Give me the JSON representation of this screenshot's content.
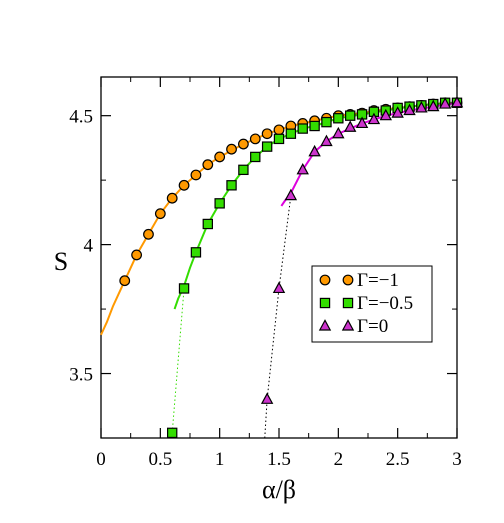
{
  "chart_data": {
    "type": "scatter",
    "title": "",
    "xlabel": "α/β",
    "ylabel": "S",
    "xlim": [
      0,
      3
    ],
    "ylim": [
      3.25,
      4.65
    ],
    "x_ticks": [
      0,
      0.5,
      1,
      1.5,
      2,
      2.5,
      3
    ],
    "x_tick_labels": [
      "0",
      "0.5",
      "1",
      "1.5",
      "2",
      "2.5",
      "3"
    ],
    "y_ticks": [
      3.5,
      4,
      4.5
    ],
    "y_tick_labels": [
      "3.5",
      "4",
      "4.5"
    ],
    "grid": false,
    "legend_position": "center-right",
    "series": [
      {
        "name": "Γ=−1",
        "marker": "circle",
        "marker_color": "#ff9900",
        "fit_color": "#ff9900",
        "connector_color": "#ff9900",
        "x": [
          0.2,
          0.3,
          0.4,
          0.5,
          0.6,
          0.7,
          0.8,
          0.9,
          1.0,
          1.1,
          1.2,
          1.3,
          1.4,
          1.5,
          1.6,
          1.7,
          1.8,
          1.9,
          2.0,
          2.1,
          2.2,
          2.3,
          2.4,
          2.5,
          2.6,
          2.7,
          2.8,
          2.9,
          3.0
        ],
        "y": [
          3.86,
          3.96,
          4.04,
          4.12,
          4.18,
          4.23,
          4.27,
          4.31,
          4.34,
          4.37,
          4.39,
          4.41,
          4.43,
          4.445,
          4.46,
          4.47,
          4.48,
          4.49,
          4.5,
          4.505,
          4.51,
          4.52,
          4.525,
          4.53,
          4.535,
          4.54,
          4.545,
          4.55,
          4.55
        ],
        "fit_x": [
          0,
          0.05,
          0.1,
          0.15,
          0.2,
          0.25,
          0.3,
          0.4,
          0.5,
          0.6,
          0.7,
          0.8,
          0.9,
          1.0,
          1.2,
          1.4,
          1.6,
          1.8,
          2.0,
          2.2,
          2.4,
          2.6,
          2.8,
          3.0
        ],
        "fit_y": [
          3.65,
          3.7,
          3.76,
          3.81,
          3.86,
          3.91,
          3.96,
          4.04,
          4.12,
          4.18,
          4.23,
          4.27,
          4.31,
          4.34,
          4.39,
          4.43,
          4.46,
          4.48,
          4.5,
          4.51,
          4.525,
          4.535,
          4.545,
          4.55
        ],
        "connector_x": [],
        "connector_y": []
      },
      {
        "name": "Γ=−0.5",
        "marker": "square",
        "marker_color": "#33dd00",
        "fit_color": "#33dd00",
        "connector_color": "#33dd00",
        "x": [
          0.6,
          0.7,
          0.8,
          0.9,
          1.0,
          1.1,
          1.2,
          1.3,
          1.4,
          1.5,
          1.6,
          1.7,
          1.8,
          1.9,
          2.0,
          2.1,
          2.2,
          2.3,
          2.4,
          2.5,
          2.6,
          2.7,
          2.8,
          2.9,
          3.0
        ],
        "y": [
          3.27,
          3.83,
          3.97,
          4.08,
          4.16,
          4.23,
          4.29,
          4.34,
          4.38,
          4.41,
          4.43,
          4.45,
          4.46,
          4.475,
          4.49,
          4.5,
          4.505,
          4.515,
          4.52,
          4.53,
          4.535,
          4.54,
          4.545,
          4.55,
          4.55
        ],
        "fit_x": [
          0.62,
          0.65,
          0.7,
          0.75,
          0.8,
          0.9,
          1.0,
          1.1,
          1.2,
          1.3,
          1.4,
          1.5,
          1.6,
          1.7,
          1.8,
          2.0,
          2.2,
          2.4,
          2.6,
          2.8,
          3.0
        ],
        "fit_y": [
          3.75,
          3.79,
          3.84,
          3.91,
          3.97,
          4.08,
          4.16,
          4.23,
          4.29,
          4.34,
          4.38,
          4.41,
          4.43,
          4.45,
          4.46,
          4.49,
          4.505,
          4.52,
          4.535,
          4.545,
          4.55
        ],
        "connector_x": [
          0.6,
          0.7
        ],
        "connector_y": [
          3.27,
          3.83
        ]
      },
      {
        "name": "Γ=0",
        "marker": "triangle",
        "marker_color": "#cc33cc",
        "fit_color": "#dd00dd",
        "connector_color": "#000000",
        "x": [
          1.4,
          1.5,
          1.6,
          1.7,
          1.8,
          1.9,
          2.0,
          2.1,
          2.2,
          2.3,
          2.4,
          2.5,
          2.6,
          2.7,
          2.8,
          2.9,
          3.0
        ],
        "y": [
          3.4,
          3.83,
          4.19,
          4.29,
          4.36,
          4.4,
          4.43,
          4.455,
          4.47,
          4.485,
          4.5,
          4.51,
          4.52,
          4.53,
          4.535,
          4.545,
          4.55
        ],
        "fit_x": [
          1.52,
          1.55,
          1.6,
          1.65,
          1.7,
          1.8,
          1.9,
          2.0,
          2.2,
          2.4,
          2.6,
          2.8,
          3.0
        ],
        "fit_y": [
          4.15,
          4.17,
          4.2,
          4.245,
          4.29,
          4.36,
          4.4,
          4.43,
          4.47,
          4.5,
          4.52,
          4.535,
          4.55
        ],
        "connector_x": [
          1.38,
          1.4,
          1.5,
          1.6
        ],
        "connector_y": [
          3.25,
          3.4,
          3.83,
          4.19
        ]
      }
    ]
  }
}
